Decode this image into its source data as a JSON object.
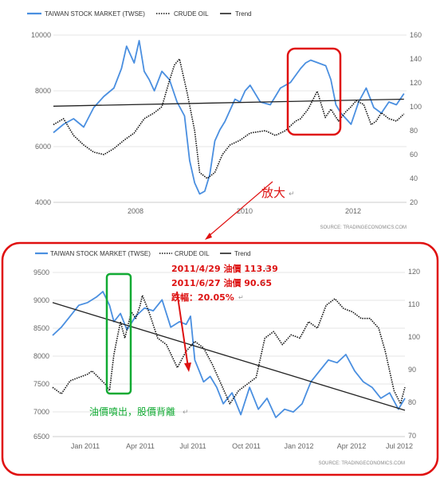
{
  "colors": {
    "stock": "#4a8fe0",
    "oil": "#111111",
    "trend": "#222222",
    "highlight_red": "#e01010",
    "highlight_green": "#11aa33"
  },
  "chart_data": [
    {
      "type": "line",
      "legend": [
        "TAIWAN STOCK MARKET (TWSE)",
        "CRUDE OIL",
        "Trend"
      ],
      "x_ticks": [
        "2008",
        "2010",
        "2012"
      ],
      "x_range": [
        2006.1,
        2013.1
      ],
      "y_left_ticks": [
        "10000",
        "8000",
        "6000",
        "4000"
      ],
      "y_left_range": [
        4000,
        10000
      ],
      "y_right_ticks": [
        "160",
        "140",
        "120",
        "100",
        "80",
        "60",
        "40",
        "20"
      ],
      "y_right_range": [
        20,
        160
      ],
      "source": "SOURCE:  TRADINGECONOMICS.COM",
      "series": [
        {
          "name": "TAIWAN STOCK MARKET (TWSE)",
          "axis": "left",
          "style": "solid",
          "x": [
            2006.1,
            2006.3,
            2006.5,
            2006.7,
            2006.9,
            2007.1,
            2007.3,
            2007.45,
            2007.55,
            2007.7,
            2007.8,
            2007.9,
            2008.0,
            2008.1,
            2008.25,
            2008.4,
            2008.55,
            2008.7,
            2008.8,
            2008.9,
            2009.0,
            2009.1,
            2009.2,
            2009.3,
            2009.4,
            2009.5,
            2009.6,
            2009.7,
            2009.8,
            2009.9,
            2010.0,
            2010.2,
            2010.4,
            2010.5,
            2010.6,
            2010.8,
            2011.0,
            2011.1,
            2011.2,
            2011.35,
            2011.5,
            2011.6,
            2011.7,
            2011.8,
            2011.9,
            2012.0,
            2012.15,
            2012.3,
            2012.45,
            2012.6,
            2012.75,
            2012.9,
            2013.05
          ],
          "y": [
            6500,
            6800,
            7000,
            6700,
            7400,
            7800,
            8100,
            8800,
            9600,
            9000,
            9800,
            8700,
            8400,
            8000,
            8700,
            8400,
            7600,
            7100,
            5500,
            4700,
            4300,
            4400,
            5000,
            6200,
            6600,
            6900,
            7300,
            7700,
            7600,
            8000,
            8200,
            7600,
            7500,
            7800,
            8100,
            8300,
            8800,
            9000,
            9100,
            9000,
            8900,
            8400,
            7500,
            7200,
            7000,
            6800,
            7600,
            8100,
            7400,
            7200,
            7600,
            7500,
            7900
          ]
        },
        {
          "name": "CRUDE OIL",
          "axis": "right",
          "style": "dotted",
          "x": [
            2006.1,
            2006.3,
            2006.5,
            2006.7,
            2006.9,
            2007.1,
            2007.3,
            2007.5,
            2007.7,
            2007.9,
            2008.1,
            2008.25,
            2008.4,
            2008.5,
            2008.6,
            2008.75,
            2008.9,
            2009.0,
            2009.15,
            2009.3,
            2009.45,
            2009.6,
            2009.8,
            2010.0,
            2010.3,
            2010.5,
            2010.7,
            2010.9,
            2011.0,
            2011.15,
            2011.33,
            2011.49,
            2011.6,
            2011.75,
            2011.9,
            2012.0,
            2012.1,
            2012.25,
            2012.4,
            2012.5,
            2012.6,
            2012.75,
            2012.9,
            2013.05
          ],
          "y": [
            85,
            90,
            76,
            68,
            62,
            60,
            65,
            72,
            78,
            90,
            95,
            100,
            122,
            135,
            140,
            112,
            80,
            45,
            40,
            45,
            60,
            68,
            72,
            78,
            80,
            76,
            80,
            88,
            90,
            98,
            113,
            91,
            98,
            88,
            96,
            100,
            105,
            102,
            85,
            88,
            95,
            90,
            88,
            94
          ]
        },
        {
          "name": "Trend",
          "axis": "left",
          "style": "solid",
          "x": [
            2006.1,
            2013.05
          ],
          "y": [
            7450,
            7700
          ]
        }
      ]
    },
    {
      "type": "line",
      "legend": [
        "TAIWAN STOCK MARKET (TWSE)",
        "CRUDE OIL",
        "Trend"
      ],
      "x_ticks": [
        "Jan 2011",
        "Apr 2011",
        "Jul 2011",
        "Oct 2011",
        "Jan 2012",
        "Apr 2012",
        "Jul 2012"
      ],
      "x_range": [
        2010.92,
        2012.53
      ],
      "y_left_ticks": [
        "9500",
        "9000",
        "8500",
        "8000",
        "7500",
        "7000",
        "6500"
      ],
      "y_left_range": [
        6500,
        9500
      ],
      "y_right_ticks": [
        "120",
        "110",
        "100",
        "90",
        "80",
        "70"
      ],
      "y_right_range": [
        70,
        120
      ],
      "source": "SOURCE:  TRADINGECONOMICS.COM",
      "series": [
        {
          "name": "TAIWAN STOCK MARKET (TWSE)",
          "axis": "left",
          "style": "solid",
          "x": [
            2010.92,
            2010.96,
            2011.0,
            2011.04,
            2011.08,
            2011.12,
            2011.15,
            2011.18,
            2011.2,
            2011.23,
            2011.26,
            2011.3,
            2011.34,
            2011.38,
            2011.42,
            2011.46,
            2011.5,
            2011.53,
            2011.55,
            2011.57,
            2011.59,
            2011.61,
            2011.64,
            2011.67,
            2011.7,
            2011.74,
            2011.78,
            2011.82,
            2011.86,
            2011.9,
            2011.94,
            2011.98,
            2012.02,
            2012.06,
            2012.1,
            2012.14,
            2012.18,
            2012.22,
            2012.26,
            2012.3,
            2012.34,
            2012.38,
            2012.42,
            2012.46,
            2012.5,
            2012.53
          ],
          "y": [
            8350,
            8500,
            8700,
            8900,
            8950,
            9050,
            9150,
            8900,
            8600,
            8750,
            8450,
            8700,
            8850,
            8800,
            9000,
            8500,
            8600,
            8550,
            8700,
            7900,
            7700,
            7500,
            7600,
            7400,
            7100,
            7300,
            6900,
            7400,
            7000,
            7200,
            6850,
            7000,
            6950,
            7100,
            7500,
            7700,
            7900,
            7850,
            8000,
            7700,
            7500,
            7400,
            7200,
            7300,
            7000,
            7200
          ]
        },
        {
          "name": "CRUDE OIL",
          "axis": "right",
          "style": "dotted",
          "x": [
            2010.92,
            2010.96,
            2011.0,
            2011.04,
            2011.08,
            2011.1,
            2011.13,
            2011.16,
            2011.18,
            2011.2,
            2011.23,
            2011.25,
            2011.28,
            2011.3,
            2011.32,
            2011.33,
            2011.36,
            2011.4,
            2011.44,
            2011.49,
            2011.53,
            2011.57,
            2011.61,
            2011.65,
            2011.69,
            2011.73,
            2011.77,
            2011.81,
            2011.85,
            2011.89,
            2011.93,
            2011.97,
            2012.01,
            2012.05,
            2012.09,
            2012.13,
            2012.17,
            2012.21,
            2012.25,
            2012.29,
            2012.33,
            2012.37,
            2012.41,
            2012.44,
            2012.48,
            2012.51,
            2012.53
          ],
          "y": [
            85,
            83,
            87,
            88,
            89,
            90,
            88,
            86,
            84,
            95,
            105,
            100,
            108,
            106,
            110,
            113,
            108,
            100,
            98,
            91,
            96,
            99,
            97,
            92,
            86,
            80,
            84,
            86,
            88,
            100,
            102,
            98,
            101,
            100,
            105,
            103,
            110,
            112,
            109,
            108,
            106,
            106,
            103,
            96,
            84,
            80,
            85
          ]
        },
        {
          "name": "Trend",
          "axis": "left",
          "style": "solid",
          "x": [
            2010.92,
            2012.53
          ],
          "y": [
            8950,
            6980
          ]
        }
      ],
      "annotations": {
        "line1": "2011/4/29  油價 113.39",
        "line2": "2011/6/27  油價  90.65",
        "line3": "跌幅：20.05%",
        "green_note": "油價噴出，股價背離"
      }
    }
  ],
  "callout": {
    "text": "放大"
  }
}
